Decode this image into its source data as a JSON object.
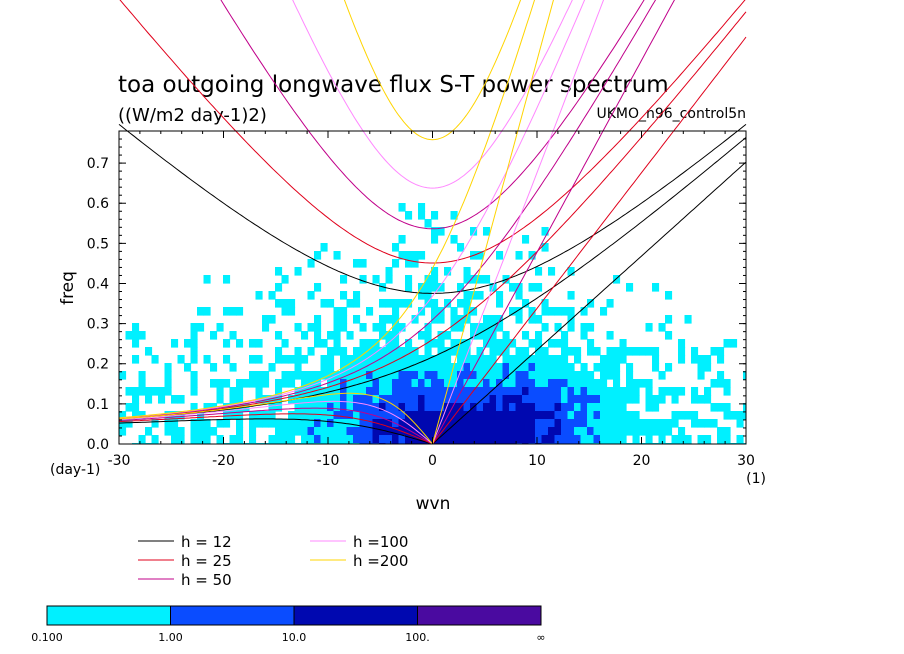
{
  "chart_data": {
    "type": "heatmap",
    "title": "toa outgoing longwave flux S-T power spectrum",
    "units": "((W/m2 day-1)2)",
    "run_label": "UKMO_n96_control5n",
    "xlabel": "wvn",
    "ylabel": "freq",
    "x_unit": "(1)",
    "y_unit": "(day-1)",
    "xlim": [
      -30,
      30
    ],
    "ylim": [
      0,
      0.78
    ],
    "x_ticks": [
      "-30",
      "-20",
      "-10",
      "0",
      "10",
      "20",
      "30"
    ],
    "y_ticks": [
      "0.0",
      "0.1",
      "0.2",
      "0.3",
      "0.4",
      "0.5",
      "0.6",
      "0.7"
    ],
    "contour_levels": [
      "0.100",
      "1.00",
      "10.0",
      "100.",
      "∞"
    ],
    "level_colors": [
      "#00f0ff",
      "#0a4cff",
      "#0008b0",
      "#4a0aa0"
    ],
    "dispersion_curves": {
      "legend": [
        {
          "label": "h = 12",
          "h": 12,
          "color": "#000000"
        },
        {
          "label": "h = 25",
          "h": 25,
          "color": "#e0001b"
        },
        {
          "label": "h = 50",
          "h": 50,
          "color": "#c0008a"
        },
        {
          "label": "h =100",
          "h": 100,
          "color": "#ff88ff"
        },
        {
          "label": "h =200",
          "h": 200,
          "color": "#ffd400"
        }
      ]
    }
  }
}
